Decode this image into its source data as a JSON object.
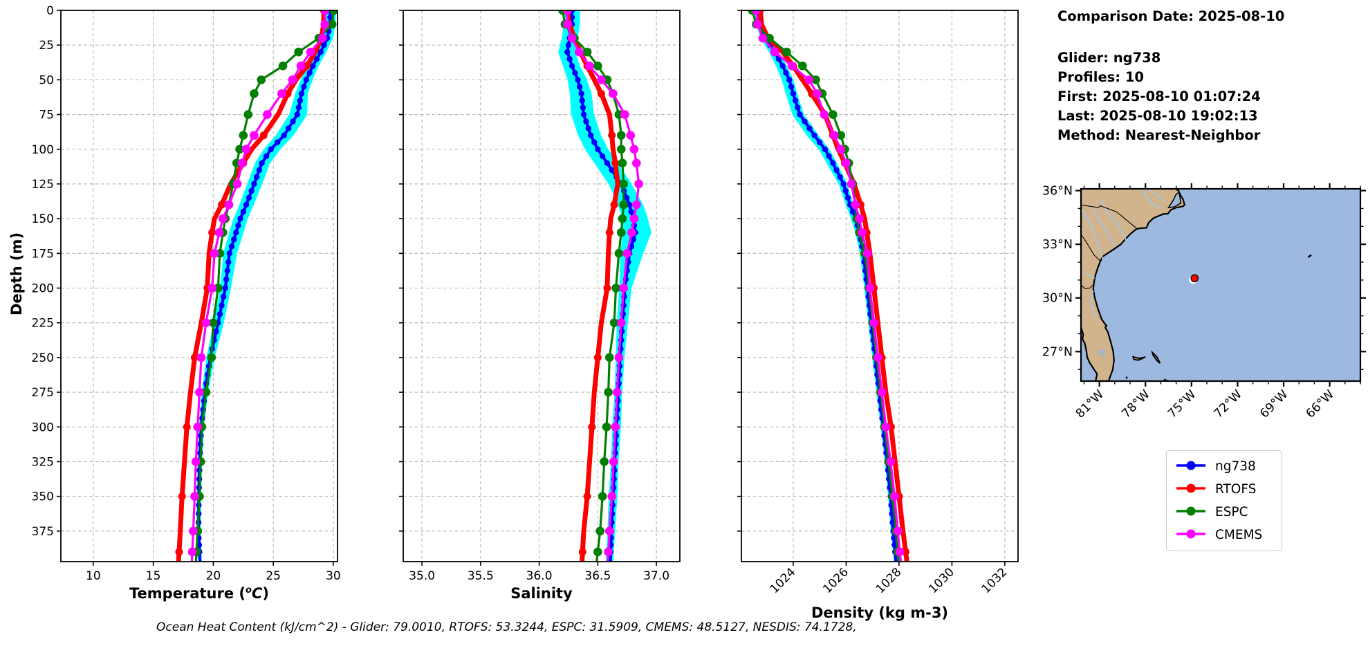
{
  "info_panel": {
    "comparison_date": "Comparison Date: 2025-08-10",
    "glider": "Glider: ng738",
    "profiles": "Profiles: 10",
    "first": "First: 2025-08-10 01:07:24",
    "last": "Last: 2025-08-10 19:02:13",
    "method": "Method: Nearest-Neighbor"
  },
  "footer": {
    "ohc_text": "Ocean Heat Content (kJ/cm^2) - Glider: 79.0010,  RTOFS: 53.3244,  ESPC: 31.5909,  CMEMS: 48.5127,  NESDIS: 74.1728,"
  },
  "legend": {
    "entries": [
      {
        "label": "ng738",
        "color": "#0000ff"
      },
      {
        "label": "RTOFS",
        "color": "#ff0000"
      },
      {
        "label": "ESPC",
        "color": "#008000"
      },
      {
        "label": "CMEMS",
        "color": "#ff00ff"
      }
    ]
  },
  "depth_axis": {
    "label": "Depth (m)",
    "ticks": [
      0,
      25,
      50,
      75,
      100,
      125,
      150,
      175,
      200,
      225,
      250,
      275,
      300,
      325,
      350,
      375
    ],
    "max": 397
  },
  "map": {
    "lat_ticks": [
      {
        "value": 36,
        "label": "36°N"
      },
      {
        "value": 33,
        "label": "33°N"
      },
      {
        "value": 30,
        "label": "30°N"
      },
      {
        "value": 27,
        "label": "27°N"
      }
    ],
    "lon_ticks": [
      {
        "value": 81,
        "label": "81°W"
      },
      {
        "value": 78,
        "label": "78°W"
      },
      {
        "value": 75,
        "label": "75°W"
      },
      {
        "value": 72,
        "label": "72°W"
      },
      {
        "value": 69,
        "label": "69°W"
      },
      {
        "value": 66,
        "label": "66°W"
      }
    ],
    "extent": {
      "lon_west": 82.2,
      "lon_east": 64.0,
      "lat_south": 25.35,
      "lat_north": 36.1
    },
    "glider_position": {
      "lon_w": 74.8,
      "lat_n": 31.1
    },
    "colors": {
      "land": "#d2b48c",
      "ocean": "#9db9df",
      "river": "#a3c6e8",
      "lake": "#aab4bf",
      "marker": "#ff0000"
    }
  },
  "chart_data": [
    {
      "type": "line",
      "profile": "temperature",
      "xlabel": "Temperature (°C)",
      "xlabel_parts": {
        "pre": "Temperature (",
        "sup": "o",
        "it": "C",
        "post": ")"
      },
      "ylabel": "Depth (m)",
      "xlim": [
        7.3,
        30.35
      ],
      "ylim": [
        0,
        397
      ],
      "xticks": [
        10,
        15,
        20,
        25,
        30
      ],
      "xtick_labels": [
        "10",
        "15",
        "20",
        "25",
        "30"
      ],
      "rotate_xticks": false,
      "show_depth_labels": true,
      "grid": true,
      "depths": [
        0,
        10,
        20,
        30,
        40,
        50,
        60,
        75,
        90,
        100,
        110,
        125,
        140,
        150,
        160,
        175,
        200,
        225,
        250,
        275,
        300,
        325,
        350,
        375,
        390
      ],
      "series": [
        {
          "name": "ng738",
          "color": "#0000ff",
          "values": [
            29.75,
            29.72,
            29.5,
            28.95,
            28.3,
            27.75,
            27.35,
            27.0,
            25.9,
            24.8,
            24.05,
            23.4,
            22.75,
            22.25,
            21.9,
            21.35,
            21.0,
            20.4,
            19.75,
            19.3,
            19.0,
            18.87,
            18.8,
            18.76,
            18.85
          ]
        },
        {
          "name": "RTOFS",
          "color": "#ff0000",
          "values": [
            29.2,
            29.2,
            29.0,
            28.5,
            27.8,
            26.9,
            26.2,
            25.4,
            24.2,
            23.2,
            22.5,
            21.45,
            20.7,
            20.1,
            19.9,
            19.65,
            19.5,
            19.0,
            18.45,
            18.1,
            17.8,
            17.6,
            17.4,
            17.25,
            17.15
          ]
        },
        {
          "name": "ESPC",
          "color": "#008000",
          "values": [
            30.05,
            29.9,
            28.8,
            27.1,
            25.8,
            24.0,
            23.4,
            22.9,
            22.5,
            22.2,
            21.95,
            21.65,
            21.3,
            21.0,
            20.8,
            20.55,
            20.4,
            20.0,
            19.85,
            19.4,
            19.05,
            18.95,
            18.85,
            18.7,
            18.6
          ]
        },
        {
          "name": "CMEMS",
          "color": "#ff00ff",
          "values": [
            29.3,
            29.3,
            29.1,
            28.1,
            27.3,
            26.6,
            25.7,
            24.5,
            23.4,
            22.75,
            22.4,
            22.0,
            21.3,
            20.8,
            20.5,
            20.1,
            19.9,
            19.4,
            19.0,
            18.85,
            18.7,
            18.55,
            18.45,
            18.33,
            18.25
          ]
        }
      ],
      "envelope": {
        "name": "glider profile range",
        "color": "#00ffff",
        "hi": [
          30.15,
          30.1,
          29.9,
          29.35,
          28.7,
          28.2,
          27.8,
          27.75,
          26.6,
          25.5,
          24.65,
          24.0,
          23.3,
          22.8,
          22.45,
          21.9,
          21.4,
          20.8,
          20.05,
          19.5,
          19.15,
          19.0,
          18.92,
          18.88,
          18.95
        ],
        "lo": [
          29.45,
          29.45,
          29.2,
          28.6,
          27.95,
          27.35,
          26.9,
          26.4,
          25.3,
          24.3,
          23.55,
          22.9,
          22.25,
          21.75,
          21.4,
          20.9,
          20.65,
          20.1,
          19.5,
          19.1,
          18.88,
          18.77,
          18.7,
          18.66,
          18.75
        ]
      }
    },
    {
      "type": "line",
      "profile": "salinity",
      "xlabel": "Salinity",
      "ylabel": "Depth (m)",
      "xlim": [
        34.84,
        37.2
      ],
      "ylim": [
        0,
        397
      ],
      "xticks": [
        35.0,
        35.5,
        36.0,
        36.5,
        37.0
      ],
      "xtick_labels": [
        "35.0",
        "35.5",
        "36.0",
        "36.5",
        "37.0"
      ],
      "rotate_xticks": false,
      "show_depth_labels": false,
      "grid": true,
      "depths": [
        0,
        10,
        20,
        30,
        40,
        50,
        60,
        75,
        90,
        100,
        110,
        125,
        140,
        150,
        160,
        175,
        200,
        225,
        250,
        275,
        300,
        325,
        350,
        375,
        390
      ],
      "series": [
        {
          "name": "ng738",
          "color": "#0000ff",
          "values": [
            36.28,
            36.28,
            36.26,
            36.24,
            36.28,
            36.33,
            36.36,
            36.38,
            36.44,
            36.5,
            36.58,
            36.7,
            36.77,
            36.8,
            36.82,
            36.77,
            36.73,
            36.71,
            36.69,
            36.675,
            36.66,
            36.645,
            36.63,
            36.615,
            36.61
          ]
        },
        {
          "name": "RTOFS",
          "color": "#ff0000",
          "values": [
            36.24,
            36.26,
            36.3,
            36.35,
            36.41,
            36.47,
            36.53,
            36.6,
            36.62,
            36.63,
            36.65,
            36.67,
            36.64,
            36.61,
            36.6,
            36.59,
            36.58,
            36.53,
            36.5,
            36.47,
            36.45,
            36.43,
            36.41,
            36.38,
            36.37
          ]
        },
        {
          "name": "ESPC",
          "color": "#008000",
          "values": [
            36.2,
            36.22,
            36.3,
            36.41,
            36.5,
            36.58,
            36.63,
            36.68,
            36.7,
            36.7,
            36.71,
            36.72,
            36.72,
            36.71,
            36.7,
            36.68,
            36.655,
            36.64,
            36.6,
            36.59,
            36.575,
            36.555,
            36.54,
            36.52,
            36.5
          ]
        },
        {
          "name": "CMEMS",
          "color": "#ff00ff",
          "values": [
            36.24,
            36.24,
            36.28,
            36.34,
            36.43,
            36.53,
            36.63,
            36.73,
            36.78,
            36.81,
            36.83,
            36.85,
            36.83,
            36.81,
            36.79,
            36.75,
            36.72,
            36.7,
            36.68,
            36.665,
            36.65,
            36.635,
            36.62,
            36.6,
            36.59
          ]
        }
      ],
      "envelope": {
        "name": "glider profile range",
        "color": "#00ffff",
        "hi": [
          36.34,
          36.34,
          36.32,
          36.3,
          36.34,
          36.4,
          36.44,
          36.46,
          36.52,
          36.58,
          36.66,
          36.78,
          36.88,
          36.92,
          36.95,
          36.88,
          36.78,
          36.75,
          36.72,
          36.7,
          36.69,
          36.67,
          36.66,
          36.64,
          36.63
        ],
        "lo": [
          36.22,
          36.22,
          36.2,
          36.17,
          36.21,
          36.25,
          36.27,
          36.28,
          36.34,
          36.4,
          36.48,
          36.6,
          36.68,
          36.72,
          36.72,
          36.7,
          36.69,
          36.67,
          36.66,
          36.65,
          36.63,
          36.62,
          36.6,
          36.59,
          36.58
        ]
      }
    },
    {
      "type": "line",
      "profile": "density",
      "xlabel": "Density (kg m-3)",
      "ylabel": "Depth (m)",
      "xlim": [
        1022.04,
        1032.5
      ],
      "ylim": [
        0,
        397
      ],
      "xticks": [
        1024,
        1026,
        1028,
        1030,
        1032
      ],
      "xtick_labels": [
        "1024",
        "1026",
        "1028",
        "1030",
        "1032"
      ],
      "rotate_xticks": true,
      "show_depth_labels": false,
      "grid": true,
      "depths": [
        0,
        10,
        20,
        30,
        40,
        50,
        60,
        75,
        90,
        100,
        110,
        125,
        140,
        150,
        160,
        175,
        200,
        225,
        250,
        275,
        300,
        325,
        350,
        375,
        390
      ],
      "series": [
        {
          "name": "ng738",
          "color": "#0000ff",
          "values": [
            1022.7,
            1022.75,
            1022.95,
            1023.3,
            1023.6,
            1023.85,
            1024.0,
            1024.25,
            1024.8,
            1025.2,
            1025.5,
            1025.9,
            1026.15,
            1026.35,
            1026.5,
            1026.65,
            1026.8,
            1026.95,
            1027.1,
            1027.25,
            1027.4,
            1027.55,
            1027.68,
            1027.78,
            1027.85
          ]
        },
        {
          "name": "RTOFS",
          "color": "#ff0000",
          "values": [
            1022.75,
            1022.8,
            1023.05,
            1023.6,
            1024.0,
            1024.35,
            1024.7,
            1025.2,
            1025.5,
            1025.7,
            1025.95,
            1026.3,
            1026.55,
            1026.7,
            1026.78,
            1026.9,
            1027.05,
            1027.2,
            1027.35,
            1027.5,
            1027.7,
            1027.85,
            1028.0,
            1028.15,
            1028.25
          ]
        },
        {
          "name": "ESPC",
          "color": "#008000",
          "values": [
            1022.45,
            1022.6,
            1023.1,
            1023.75,
            1024.35,
            1024.85,
            1025.1,
            1025.5,
            1025.8,
            1025.95,
            1026.1,
            1026.25,
            1026.35,
            1026.4,
            1026.5,
            1026.7,
            1026.87,
            1027.0,
            1027.15,
            1027.3,
            1027.45,
            1027.6,
            1027.75,
            1027.88,
            1027.95
          ]
        },
        {
          "name": "CMEMS",
          "color": "#ff00ff",
          "values": [
            1022.6,
            1022.65,
            1022.85,
            1023.3,
            1023.95,
            1024.6,
            1024.9,
            1025.17,
            1025.55,
            1025.8,
            1026.0,
            1026.2,
            1026.35,
            1026.5,
            1026.6,
            1026.8,
            1026.9,
            1027.05,
            1027.2,
            1027.35,
            1027.5,
            1027.68,
            1027.83,
            1027.95,
            1028.03
          ]
        }
      ],
      "envelope": {
        "name": "glider profile range",
        "color": "#00ffff",
        "hi": [
          1022.82,
          1022.87,
          1023.07,
          1023.42,
          1023.72,
          1023.97,
          1024.12,
          1024.37,
          1024.92,
          1025.32,
          1025.62,
          1026.0,
          1026.25,
          1026.45,
          1026.6,
          1026.75,
          1026.88,
          1027.03,
          1027.18,
          1027.32,
          1027.46,
          1027.6,
          1027.72,
          1027.82,
          1027.89
        ],
        "lo": [
          1022.58,
          1022.63,
          1022.8,
          1023.12,
          1023.38,
          1023.6,
          1023.75,
          1024.0,
          1024.55,
          1025.0,
          1025.3,
          1025.75,
          1026.02,
          1026.22,
          1026.38,
          1026.55,
          1026.72,
          1026.87,
          1027.02,
          1027.18,
          1027.34,
          1027.49,
          1027.62,
          1027.72,
          1027.8
        ]
      }
    }
  ]
}
